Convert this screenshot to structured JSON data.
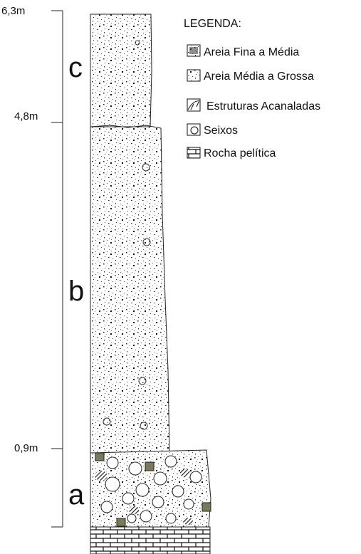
{
  "depth_labels": [
    "6,3m",
    "4,8m",
    "0,9m"
  ],
  "units": [
    "c",
    "b",
    "a"
  ],
  "legend": {
    "title": "LEGENDA:",
    "items": [
      "Areia Fina a Média",
      "Areia Média a Grossa",
      "Estruturas Acanaladas",
      "Seixos",
      "Rocha pelítica"
    ]
  }
}
